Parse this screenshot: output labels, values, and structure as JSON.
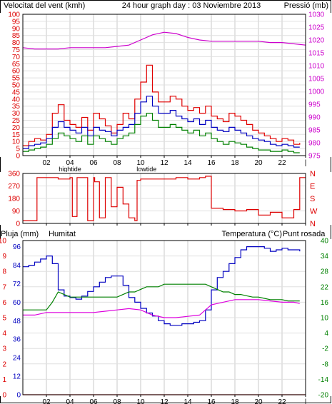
{
  "header": {
    "wind_label": "Velocitat del vent (kmh)",
    "title": "24 hour graph day : 03 Noviembre 2013",
    "pressure_label": "Pressió (mb)"
  },
  "labels": {
    "rain": "Pluja (mm)",
    "humidity": "Humitat",
    "temperature": "Temperatura (°C)",
    "dewpoint": "Punt rosada"
  },
  "time_axis": {
    "ticks": [
      "02",
      "04",
      "06",
      "08",
      "10",
      "12",
      "14",
      "16",
      "18",
      "20",
      "22",
      "|"
    ],
    "tide_labels": [
      {
        "hour": 4,
        "text": "hightide"
      },
      {
        "hour": 10.5,
        "text": "lowtide"
      }
    ]
  },
  "colors": {
    "wind_gust": "#e00000",
    "wind_avg": "#0000c0",
    "wind_low": "#008000",
    "pressure": "#cc00cc",
    "direction": "#dd0000",
    "humidity": "#0000c0",
    "temperature": "#008000",
    "dewpoint": "#dd00dd",
    "rain": "#dd0000"
  },
  "chart_data": [
    {
      "type": "line",
      "ylabel_left": "Velocitat del vent (kmh)",
      "ylabel_right": "Pressió (mb)",
      "xlim": [
        0,
        24
      ],
      "ylim_left": [
        0,
        100
      ],
      "yticks_left": [
        "0",
        "5",
        "10",
        "15",
        "20",
        "25",
        "30",
        "35",
        "40",
        "45",
        "50",
        "55",
        "60",
        "65",
        "70",
        "75",
        "80",
        "85",
        "90",
        "95",
        "100"
      ],
      "ylim_right": [
        975,
        1030
      ],
      "yticks_right": [
        "975",
        "980",
        "985",
        "990",
        "995",
        "1000",
        "1005",
        "1010",
        "1015",
        "1020",
        "1025",
        "1030"
      ],
      "series": [
        {
          "key": "gust",
          "axis": "left",
          "x": [
            0,
            0.5,
            1,
            1.5,
            2,
            2.5,
            3,
            3.5,
            4,
            4.5,
            5,
            5.5,
            6,
            6.5,
            7,
            7.5,
            8,
            8.5,
            9,
            9.5,
            10,
            10.5,
            11,
            11.5,
            12,
            12.5,
            13,
            13.5,
            14,
            14.5,
            15,
            15.5,
            16,
            16.5,
            17,
            17.5,
            18,
            18.5,
            19,
            19.5,
            20,
            20.5,
            21,
            21.5,
            22,
            22.5,
            23,
            23.5
          ],
          "values": [
            7,
            10,
            12,
            11,
            15,
            30,
            36,
            25,
            22,
            20,
            27,
            18,
            30,
            26,
            21,
            16,
            22,
            30,
            26,
            40,
            52,
            64,
            45,
            38,
            38,
            42,
            40,
            35,
            32,
            34,
            30,
            35,
            28,
            26,
            24,
            30,
            28,
            25,
            22,
            18,
            16,
            14,
            12,
            10,
            12,
            11,
            8,
            9
          ]
        },
        {
          "key": "average",
          "axis": "left",
          "x": [
            0,
            0.5,
            1,
            1.5,
            2,
            2.5,
            3,
            3.5,
            4,
            4.5,
            5,
            5.5,
            6,
            6.5,
            7,
            7.5,
            8,
            8.5,
            9,
            9.5,
            10,
            10.5,
            11,
            11.5,
            12,
            12.5,
            13,
            13.5,
            14,
            14.5,
            15,
            15.5,
            16,
            16.5,
            17,
            17.5,
            18,
            18.5,
            19,
            19.5,
            20,
            20.5,
            21,
            21.5,
            22,
            22.5,
            23,
            23.5
          ],
          "values": [
            5,
            7,
            8,
            9,
            12,
            20,
            24,
            20,
            18,
            16,
            20,
            14,
            20,
            18,
            17,
            14,
            18,
            20,
            22,
            30,
            38,
            42,
            35,
            30,
            30,
            32,
            28,
            26,
            24,
            26,
            22,
            25,
            20,
            18,
            17,
            20,
            18,
            16,
            14,
            12,
            11,
            10,
            8,
            7,
            8,
            7,
            6,
            6
          ]
        },
        {
          "key": "low",
          "axis": "left",
          "x": [
            0,
            0.5,
            1,
            1.5,
            2,
            2.5,
            3,
            3.5,
            4,
            4.5,
            5,
            5.5,
            6,
            6.5,
            7,
            7.5,
            8,
            8.5,
            9,
            9.5,
            10,
            10.5,
            11,
            11.5,
            12,
            12.5,
            13,
            13.5,
            14,
            14.5,
            15,
            15.5,
            16,
            16.5,
            17,
            17.5,
            18,
            18.5,
            19,
            19.5,
            20,
            20.5,
            21,
            21.5,
            22,
            22.5,
            23,
            23.5
          ],
          "values": [
            3,
            4,
            5,
            6,
            8,
            12,
            16,
            14,
            12,
            10,
            14,
            8,
            14,
            12,
            10,
            8,
            12,
            14,
            16,
            22,
            28,
            30,
            25,
            20,
            20,
            22,
            20,
            18,
            16,
            18,
            14,
            16,
            12,
            10,
            8,
            10,
            9,
            8,
            6,
            5,
            4,
            4,
            3,
            3,
            4,
            3,
            2,
            2
          ]
        },
        {
          "key": "pressure",
          "axis": "right",
          "x": [
            0,
            1,
            2,
            3,
            4,
            5,
            6,
            7,
            8,
            9,
            10,
            11,
            12,
            13,
            14,
            15,
            16,
            17,
            18,
            19,
            20,
            21,
            22,
            23,
            24
          ],
          "values": [
            1017,
            1016.5,
            1016.5,
            1016.5,
            1017,
            1017,
            1017,
            1017,
            1017.5,
            1018,
            1020,
            1022,
            1023,
            1022.5,
            1021,
            1020,
            1019.5,
            1019.5,
            1019.5,
            1019.5,
            1019.5,
            1019,
            1019,
            1018.5,
            1018
          ]
        }
      ]
    },
    {
      "type": "line",
      "ylabel_right": [
        "N",
        "W",
        "S",
        "E",
        "N"
      ],
      "xlim": [
        0,
        24
      ],
      "ylim": [
        0,
        360
      ],
      "yticks": [
        "0",
        "90",
        "180",
        "270",
        "360"
      ],
      "series": [
        {
          "key": "direction",
          "x": [
            0,
            1,
            1.2,
            2.5,
            3,
            4,
            4.2,
            4.6,
            5,
            5.5,
            6,
            6.1,
            6.5,
            7,
            7.5,
            8,
            8.5,
            9,
            9.5,
            9.7,
            10,
            11,
            12,
            13,
            14,
            15,
            15.5,
            16,
            17,
            18,
            19,
            20,
            21,
            22,
            23,
            23.5,
            24
          ],
          "values": [
            20,
            20,
            330,
            330,
            320,
            330,
            50,
            330,
            330,
            20,
            330,
            300,
            40,
            330,
            120,
            260,
            140,
            40,
            20,
            310,
            320,
            320,
            320,
            330,
            320,
            330,
            340,
            110,
            100,
            90,
            100,
            60,
            80,
            40,
            100,
            330,
            330
          ]
        }
      ]
    },
    {
      "type": "line",
      "ylabel_left_outer": "Pluja (mm)",
      "ylabel_left_inner": "Humitat",
      "ylabel_right": "Temperatura (°C)",
      "ylabel_right_2": "Punt rosada",
      "xlim": [
        0,
        24
      ],
      "ylim_rain": [
        0,
        10
      ],
      "yticks_rain": [
        "0",
        "1",
        "2",
        "3",
        "4",
        "5",
        "6",
        "7",
        "8",
        "9",
        "10"
      ],
      "ylim_humidity": [
        0,
        100
      ],
      "yticks_humidity": [
        "0",
        "12",
        "24",
        "36",
        "48",
        "60",
        "72",
        "84",
        "96"
      ],
      "ylim_temp": [
        -20,
        40
      ],
      "yticks_temp": [
        "-20",
        "-14",
        "-8",
        "-2",
        "4",
        "10",
        "16",
        "22",
        "28",
        "34",
        "40"
      ],
      "series": [
        {
          "key": "humidity",
          "axis": "humidity",
          "x": [
            0,
            0.5,
            1,
            1.5,
            2,
            2.5,
            3,
            3.5,
            4,
            4.5,
            5,
            5.5,
            6,
            6.5,
            7,
            7.5,
            8,
            8.5,
            9,
            9.5,
            10,
            10.5,
            11,
            11.5,
            12,
            12.5,
            13,
            13.5,
            14,
            14.5,
            15,
            15.5,
            16,
            16.5,
            17,
            17.5,
            18,
            18.5,
            19,
            19.5,
            20,
            20.5,
            21,
            21.5,
            22,
            22.5,
            23,
            23.5
          ],
          "values": [
            83,
            84,
            86,
            88,
            90,
            85,
            68,
            64,
            63,
            62,
            64,
            67,
            70,
            73,
            76,
            77,
            77,
            71,
            63,
            60,
            56,
            53,
            51,
            48,
            46,
            45,
            45,
            46,
            46,
            47,
            48,
            55,
            68,
            76,
            80,
            85,
            89,
            94,
            96,
            96,
            96,
            95,
            93,
            94,
            95,
            94,
            94,
            93
          ]
        },
        {
          "key": "temperature",
          "axis": "temp",
          "x": [
            0,
            0.5,
            1,
            1.5,
            2,
            2.5,
            3,
            3.5,
            4,
            4.5,
            5,
            5.5,
            6,
            6.5,
            7,
            7.5,
            8,
            8.5,
            9,
            9.5,
            10,
            10.5,
            11,
            11.5,
            12,
            12.5,
            13,
            13.5,
            14,
            14.5,
            15,
            15.5,
            16,
            16.5,
            17,
            17.5,
            18,
            18.5,
            19,
            19.5,
            20,
            20.5,
            21,
            21.5,
            22,
            22.5,
            23,
            23.5
          ],
          "values": [
            13,
            13,
            13,
            13,
            13,
            16,
            20,
            19,
            18,
            18,
            18,
            18,
            18,
            18,
            18,
            18,
            18,
            19,
            20,
            20,
            21,
            22,
            22,
            22,
            23,
            23,
            23,
            23,
            23,
            23,
            23,
            23,
            22,
            21,
            20,
            20,
            19,
            19,
            18.5,
            18,
            18,
            17.5,
            17,
            17,
            17,
            16.5,
            16.5,
            16.5
          ]
        },
        {
          "key": "dewpoint",
          "axis": "temp",
          "x": [
            0,
            1,
            2,
            3,
            4,
            5,
            6,
            7,
            8,
            9,
            10,
            11,
            12,
            13,
            14,
            15,
            16,
            17,
            18,
            19,
            20,
            21,
            22,
            23,
            23.5
          ],
          "values": [
            11,
            11,
            12,
            12,
            12,
            12,
            12,
            12.5,
            13,
            13.5,
            13,
            11,
            10,
            10,
            10.5,
            11,
            15,
            16,
            17,
            17,
            17,
            16.5,
            16,
            16,
            15.5
          ]
        },
        {
          "key": "rain",
          "axis": "rain",
          "x": [
            0,
            24
          ],
          "values": [
            0,
            0
          ]
        }
      ]
    }
  ]
}
